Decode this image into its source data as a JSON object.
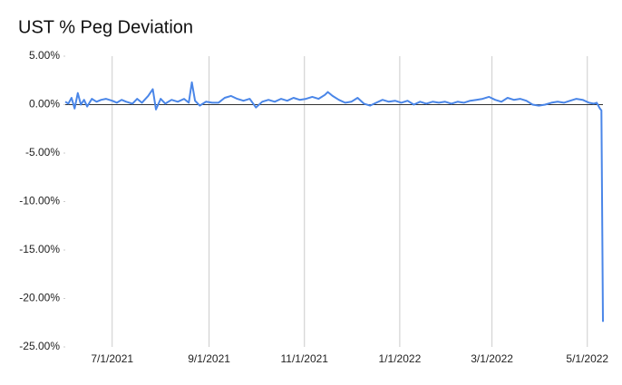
{
  "chart_data": {
    "type": "line",
    "title": "UST % Peg Deviation",
    "x": [
      "6/1/2021",
      "6/3/2021",
      "6/5/2021",
      "6/7/2021",
      "6/9/2021",
      "6/11/2021",
      "6/13/2021",
      "6/15/2021",
      "6/18/2021",
      "6/21/2021",
      "6/24/2021",
      "6/27/2021",
      "7/1/2021",
      "7/4/2021",
      "7/7/2021",
      "7/10/2021",
      "7/14/2021",
      "7/17/2021",
      "7/20/2021",
      "7/24/2021",
      "7/27/2021",
      "7/29/2021",
      "8/1/2021",
      "8/4/2021",
      "8/8/2021",
      "8/12/2021",
      "8/16/2021",
      "8/19/2021",
      "8/21/2021",
      "8/23/2021",
      "8/26/2021",
      "8/30/2021",
      "9/3/2021",
      "9/7/2021",
      "9/11/2021",
      "9/15/2021",
      "9/19/2021",
      "9/23/2021",
      "9/27/2021",
      "10/1/2021",
      "10/5/2021",
      "10/9/2021",
      "10/13/2021",
      "10/17/2021",
      "10/21/2021",
      "10/25/2021",
      "10/29/2021",
      "11/2/2021",
      "11/6/2021",
      "11/10/2021",
      "11/14/2021",
      "11/16/2021",
      "11/19/2021",
      "11/23/2021",
      "11/27/2021",
      "12/1/2021",
      "12/5/2021",
      "12/9/2021",
      "12/13/2021",
      "12/17/2021",
      "12/21/2021",
      "12/25/2021",
      "12/29/2021",
      "1/2/2022",
      "1/6/2022",
      "1/10/2022",
      "1/14/2022",
      "1/18/2022",
      "1/22/2022",
      "1/26/2022",
      "1/30/2022",
      "2/3/2022",
      "2/7/2022",
      "2/11/2022",
      "2/15/2022",
      "2/19/2022",
      "2/23/2022",
      "2/27/2022",
      "3/3/2022",
      "3/7/2022",
      "3/11/2022",
      "3/15/2022",
      "3/19/2022",
      "3/23/2022",
      "3/27/2022",
      "3/31/2022",
      "4/4/2022",
      "4/8/2022",
      "4/12/2022",
      "4/16/2022",
      "4/20/2022",
      "4/24/2022",
      "4/28/2022",
      "5/2/2022",
      "5/5/2022",
      "5/7/2022",
      "5/9/2022",
      "5/10/2022",
      "5/11/2022"
    ],
    "series": [
      {
        "name": "UST % Peg Deviation",
        "color": "#4a86e8",
        "values": [
          0.3,
          0.1,
          0.7,
          -0.4,
          1.2,
          0.0,
          0.5,
          -0.2,
          0.6,
          0.3,
          0.5,
          0.6,
          0.4,
          0.2,
          0.5,
          0.3,
          0.1,
          0.6,
          0.2,
          0.9,
          1.6,
          -0.5,
          0.6,
          0.1,
          0.5,
          0.3,
          0.6,
          0.2,
          2.3,
          0.4,
          -0.1,
          0.3,
          0.2,
          0.2,
          0.7,
          0.9,
          0.6,
          0.4,
          0.6,
          -0.3,
          0.3,
          0.5,
          0.3,
          0.6,
          0.4,
          0.7,
          0.5,
          0.6,
          0.8,
          0.6,
          1.0,
          1.3,
          0.9,
          0.5,
          0.2,
          0.3,
          0.7,
          0.1,
          -0.1,
          0.2,
          0.5,
          0.3,
          0.4,
          0.2,
          0.4,
          0.0,
          0.3,
          0.1,
          0.3,
          0.2,
          0.3,
          0.1,
          0.3,
          0.2,
          0.4,
          0.5,
          0.6,
          0.8,
          0.5,
          0.3,
          0.7,
          0.5,
          0.6,
          0.4,
          0.0,
          -0.1,
          0.0,
          0.2,
          0.3,
          0.2,
          0.4,
          0.6,
          0.5,
          0.2,
          0.1,
          0.2,
          -0.4,
          -0.6,
          -22.4
        ]
      }
    ],
    "xlim": [
      "6/1/2021",
      "5/11/2022"
    ],
    "xticks": [
      "7/1/2021",
      "9/1/2021",
      "11/1/2021",
      "1/1/2022",
      "3/1/2022",
      "5/1/2022"
    ],
    "ylim": [
      -25,
      5
    ],
    "yticks": [
      {
        "value": 5,
        "label": "5.00%"
      },
      {
        "value": 0,
        "label": "0.00%"
      },
      {
        "value": -5,
        "label": "-5.00%"
      },
      {
        "value": -10,
        "label": "-10.00%"
      },
      {
        "value": -15,
        "label": "-15.00%"
      },
      {
        "value": -20,
        "label": "-20.00%"
      },
      {
        "value": -25,
        "label": "-25.00%"
      }
    ],
    "grid": true
  }
}
